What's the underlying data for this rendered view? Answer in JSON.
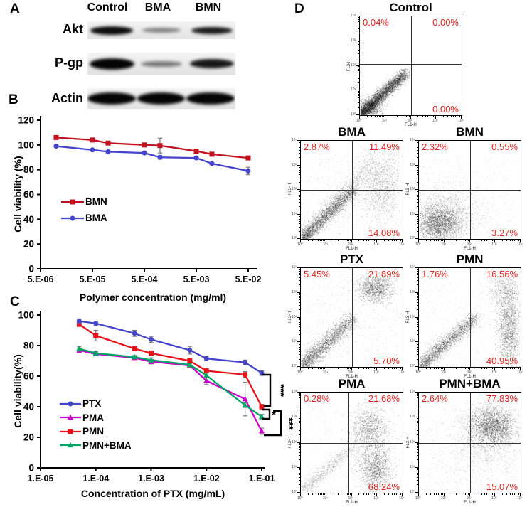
{
  "panels": {
    "a_label": "A",
    "b_label": "B",
    "c_label": "C",
    "d_label": "D"
  },
  "western_blot": {
    "lanes": [
      "Control",
      "BMA",
      "BMN"
    ],
    "rows": [
      {
        "label": "Akt",
        "bands": [
          {
            "x": 0.02,
            "w": 0.29,
            "h": 12,
            "intensity": 0.97
          },
          {
            "x": 0.37,
            "w": 0.26,
            "h": 7,
            "intensity": 0.45
          },
          {
            "x": 0.7,
            "w": 0.28,
            "h": 10,
            "intensity": 0.9
          }
        ]
      },
      {
        "label": "P-gp",
        "bands": [
          {
            "x": 0.015,
            "w": 0.3,
            "h": 16,
            "intensity": 1.0
          },
          {
            "x": 0.36,
            "w": 0.28,
            "h": 8,
            "intensity": 0.5
          },
          {
            "x": 0.69,
            "w": 0.3,
            "h": 13,
            "intensity": 0.92
          }
        ]
      },
      {
        "label": "Actin",
        "bands": [
          {
            "x": 0.0,
            "w": 0.325,
            "h": 17,
            "intensity": 1.0
          },
          {
            "x": 0.335,
            "w": 0.325,
            "h": 17,
            "intensity": 1.0
          },
          {
            "x": 0.67,
            "w": 0.325,
            "h": 17,
            "intensity": 1.0
          }
        ]
      }
    ]
  },
  "chart_data": [
    {
      "id": "panelB",
      "type": "line",
      "xlabel": "Polymer concentration (mg/ml)",
      "ylabel": "Cell viability (%)",
      "x_scale": "log",
      "x_tick_labels": [
        "5.E-06",
        "5.E-05",
        "5.E-04",
        "5.E-03",
        "5.E-02"
      ],
      "x_tick_values": [
        5e-06,
        5e-05,
        0.0005,
        0.005,
        0.05
      ],
      "y_ticks": [
        0,
        20,
        40,
        60,
        80,
        100,
        120
      ],
      "ylim": [
        0,
        120
      ],
      "x": [
        1e-05,
        5e-05,
        0.0001,
        0.0005,
        0.001,
        0.005,
        0.01,
        0.05
      ],
      "series": [
        {
          "name": "BMN",
          "color": "#c2111f",
          "marker": "square",
          "values": [
            106,
            104,
            101.5,
            100,
            99.5,
            95,
            92.5,
            89.5
          ],
          "errors": [
            1.5,
            1,
            1.2,
            1,
            6,
            1,
            1.5,
            1.2
          ]
        },
        {
          "name": "BMA",
          "color": "#4444cc",
          "marker": "circle",
          "values": [
            99,
            96,
            94.5,
            93.5,
            90,
            89.5,
            85,
            79
          ],
          "errors": [
            1,
            1,
            1,
            1,
            1.5,
            1,
            1,
            3
          ]
        }
      ],
      "legend_position": "inside-left"
    },
    {
      "id": "panelC",
      "type": "line",
      "xlabel": "Concentration of PTX (mg/mL)",
      "ylabel": "Cell viability(%)",
      "x_scale": "log",
      "x_tick_labels": [
        "1.E-05",
        "1.E-04",
        "1.E-03",
        "1.E-02",
        "1.E-01"
      ],
      "x_tick_values": [
        1e-05,
        0.0001,
        0.001,
        0.01,
        0.1
      ],
      "y_ticks": [
        0,
        20,
        40,
        60,
        80,
        100
      ],
      "ylim": [
        0,
        100
      ],
      "x": [
        5e-05,
        0.0001,
        0.0005,
        0.001,
        0.005,
        0.01,
        0.05,
        0.1
      ],
      "series": [
        {
          "name": "PTX",
          "color": "#4444cc",
          "marker": "circle",
          "values": [
            96,
            94.5,
            88,
            84,
            77,
            71.5,
            69,
            62
          ],
          "errors": [
            1.5,
            1.5,
            2,
            2,
            2.5,
            1.5,
            1.5,
            1.5
          ]
        },
        {
          "name": "PMA",
          "color": "#cc00cc",
          "marker": "triangle",
          "values": [
            77,
            74.5,
            72,
            69.5,
            67,
            57,
            45,
            24
          ],
          "errors": [
            1.5,
            1,
            1,
            1.5,
            1,
            2.5,
            11,
            2
          ]
        },
        {
          "name": "PMN",
          "color": "#e8121c",
          "marker": "square",
          "values": [
            94,
            86.5,
            78,
            75,
            70,
            63.5,
            61,
            40
          ],
          "errors": [
            1.5,
            3.5,
            1.5,
            1.5,
            1.5,
            1.5,
            2,
            1.5
          ]
        },
        {
          "name": "PMN+BMA",
          "color": "#00a466",
          "marker": "triangle",
          "values": [
            78,
            75,
            72.5,
            70.5,
            67.5,
            60.5,
            41,
            33.5
          ],
          "errors": [
            1.5,
            1,
            1,
            1.5,
            1.5,
            3,
            1.5,
            1.5
          ]
        }
      ],
      "significance": [
        {
          "label": "***",
          "from": "PTX",
          "to": "PMN"
        },
        {
          "label": "*",
          "from": "PMN",
          "to": "PMN+BMA"
        },
        {
          "label": "***",
          "from": "PMN",
          "to": "PMA"
        }
      ],
      "legend_position": "inside-left"
    }
  ],
  "flow_cytometry": {
    "xlabel": "FL1-H",
    "ylabel": "FL3-H",
    "percent_color": "#e0251f",
    "axis_ticks": [
      "10⁰",
      "10¹",
      "10²",
      "10³",
      "10⁴"
    ],
    "plots": [
      {
        "title": "Control",
        "ul": "0.04%",
        "ur": "0.00%",
        "lr": "0.00%",
        "gate": [
          0.5,
          0.52
        ],
        "clusters": [
          {
            "kind": "diag",
            "from": [
              0.01,
              0.01
            ],
            "to": [
              0.45,
              0.43
            ],
            "spread": 0.032,
            "n": 4200
          },
          {
            "kind": "blob",
            "c": [
              0.09,
              0.08
            ],
            "s": [
              0.06,
              0.05
            ],
            "n": 900
          }
        ]
      },
      {
        "title": "BMA",
        "ul": "2.87%",
        "ur": "11.49%",
        "lr": "14.08%",
        "gate": [
          0.5,
          0.5
        ],
        "clusters": [
          {
            "kind": "diag",
            "from": [
              0.01,
              0.01
            ],
            "to": [
              0.52,
              0.5
            ],
            "spread": 0.04,
            "n": 2600
          },
          {
            "kind": "diag",
            "from": [
              0.28,
              0.3
            ],
            "to": [
              0.7,
              0.8
            ],
            "spread": 0.05,
            "n": 650,
            "a": 0.3
          },
          {
            "kind": "blob",
            "c": [
              0.78,
              0.55
            ],
            "s": [
              0.1,
              0.2
            ],
            "n": 1300,
            "a": 0.35
          },
          {
            "kind": "uniform",
            "min": [
              0.03,
              0.03
            ],
            "max": [
              0.97,
              0.88
            ],
            "n": 500,
            "a": 0.25
          }
        ]
      },
      {
        "title": "BMN",
        "ul": "2.32%",
        "ur": "0.55%",
        "lr": "3.27%",
        "gate": [
          0.5,
          0.5
        ],
        "clusters": [
          {
            "kind": "blob",
            "c": [
              0.2,
              0.16
            ],
            "s": [
              0.12,
              0.1
            ],
            "n": 2700
          },
          {
            "kind": "blob",
            "c": [
              0.3,
              0.3
            ],
            "s": [
              0.17,
              0.15
            ],
            "n": 800,
            "a": 0.3
          },
          {
            "kind": "uniform",
            "min": [
              0.03,
              0.03
            ],
            "max": [
              0.93,
              0.85
            ],
            "n": 450,
            "a": 0.22
          }
        ]
      },
      {
        "title": "PTX",
        "ul": "5.45%",
        "ur": "21.89%",
        "lr": "5.70%",
        "gate": [
          0.5,
          0.52
        ],
        "clusters": [
          {
            "kind": "diag",
            "from": [
              0.01,
              0.01
            ],
            "to": [
              0.5,
              0.48
            ],
            "spread": 0.045,
            "n": 2300
          },
          {
            "kind": "blob",
            "c": [
              0.73,
              0.8
            ],
            "s": [
              0.085,
              0.07
            ],
            "n": 1200
          },
          {
            "kind": "uniform",
            "min": [
              0.04,
              0.04
            ],
            "max": [
              0.95,
              0.95
            ],
            "n": 750,
            "a": 0.22
          }
        ]
      },
      {
        "title": "PMN",
        "ul": "1.76%",
        "ur": "16.56%",
        "lr": "40.95%",
        "gate": [
          0.5,
          0.52
        ],
        "clusters": [
          {
            "kind": "diag",
            "from": [
              0.02,
              0.02
            ],
            "to": [
              0.56,
              0.5
            ],
            "spread": 0.04,
            "n": 2100
          },
          {
            "kind": "blob",
            "c": [
              0.88,
              0.42
            ],
            "s": [
              0.055,
              0.24
            ],
            "n": 1700
          },
          {
            "kind": "blob",
            "c": [
              0.82,
              0.78
            ],
            "s": [
              0.08,
              0.09
            ],
            "n": 500,
            "a": 0.3
          },
          {
            "kind": "uniform",
            "min": [
              0.04,
              0.02
            ],
            "max": [
              0.97,
              0.9
            ],
            "n": 450,
            "a": 0.22
          }
        ]
      },
      {
        "title": "PMA",
        "ul": "0.28%",
        "ur": "21.68%",
        "lr": "68.24%",
        "gate": [
          0.47,
          0.5
        ],
        "clusters": [
          {
            "kind": "diag",
            "from": [
              0.02,
              0.02
            ],
            "to": [
              0.5,
              0.46
            ],
            "spread": 0.035,
            "n": 750,
            "a": 0.3
          },
          {
            "kind": "blob",
            "c": [
              0.67,
              0.63
            ],
            "s": [
              0.09,
              0.12
            ],
            "n": 1100
          },
          {
            "kind": "blob",
            "c": [
              0.73,
              0.25
            ],
            "s": [
              0.08,
              0.11
            ],
            "n": 1300
          },
          {
            "kind": "uniform",
            "min": [
              0.04,
              0.04
            ],
            "max": [
              0.95,
              0.9
            ],
            "n": 350,
            "a": 0.22
          }
        ]
      },
      {
        "title": "PMN+BMA",
        "ul": "2.64%",
        "ur": "77.83%",
        "lr": "15.07%",
        "gate": [
          0.5,
          0.5
        ],
        "clusters": [
          {
            "kind": "blob",
            "c": [
              0.72,
              0.67
            ],
            "s": [
              0.115,
              0.1
            ],
            "n": 2500
          },
          {
            "kind": "blob",
            "c": [
              0.62,
              0.45
            ],
            "s": [
              0.17,
              0.14
            ],
            "n": 700,
            "a": 0.3
          },
          {
            "kind": "uniform",
            "min": [
              0.03,
              0.03
            ],
            "max": [
              0.97,
              0.92
            ],
            "n": 700,
            "a": 0.22
          }
        ]
      }
    ]
  }
}
